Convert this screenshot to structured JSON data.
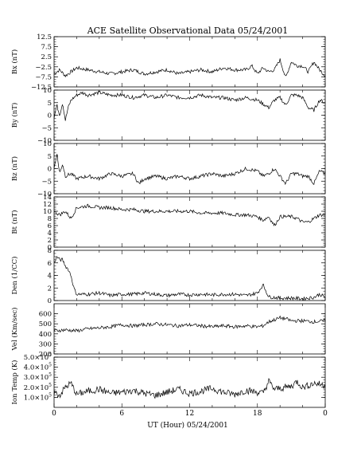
{
  "chart_data": {
    "type": "line",
    "title": "ACE Satellite Observational Data   05/24/2001",
    "xlabel": "UT (Hour)   05/24/2001",
    "x_ticks": [
      "0",
      "6",
      "12",
      "18",
      "0"
    ],
    "xlim": [
      0,
      24
    ],
    "panels": [
      {
        "name": "bx",
        "ylabel": "Bx (nT)",
        "ylim": [
          -12.5,
          12.5
        ],
        "y_ticks": [
          {
            "v": 12.5,
            "t": "12.5"
          },
          {
            "v": 7.5,
            "t": "7.5"
          },
          {
            "v": 2.5,
            "t": "2.5"
          },
          {
            "v": -2.5,
            "t": "−2.5"
          },
          {
            "v": -7.5,
            "t": "−7.5"
          },
          {
            "v": -12.5,
            "t": "−12.5"
          }
        ],
        "x": [
          0,
          0.5,
          1,
          1.5,
          2,
          3,
          4,
          5,
          6,
          7,
          8,
          9,
          10,
          11,
          12,
          13,
          14,
          15,
          16,
          17,
          17.5,
          18,
          18.5,
          19,
          19.5,
          20,
          20.5,
          21,
          21.5,
          22,
          22.5,
          23,
          23.5,
          24
        ],
        "y": [
          -6,
          -4,
          -7,
          -5,
          -3,
          -4,
          -5,
          -6,
          -5,
          -4,
          -6,
          -5,
          -4,
          -6,
          -5,
          -4,
          -5,
          -3,
          -4,
          -4,
          -2,
          -6,
          -3,
          -5,
          -4,
          1,
          -8,
          0,
          -2,
          -2,
          -5,
          0,
          -4,
          -7
        ]
      },
      {
        "name": "by",
        "ylabel": "By (nT)",
        "ylim": [
          -10,
          10
        ],
        "y_ticks": [
          {
            "v": 10,
            "t": "10"
          },
          {
            "v": 5,
            "t": "5"
          },
          {
            "v": 0,
            "t": "0"
          },
          {
            "v": -5,
            "t": "−5"
          },
          {
            "v": -10,
            "t": "−10"
          }
        ],
        "x": [
          0,
          0.25,
          0.5,
          0.75,
          1,
          1.25,
          1.5,
          2,
          2.5,
          3,
          4,
          5,
          6,
          7,
          8,
          9,
          10,
          11,
          12,
          13,
          14,
          15,
          16,
          17,
          18,
          19,
          19.5,
          20,
          20.5,
          21,
          21.5,
          22,
          22.5,
          23,
          23.5,
          24
        ],
        "y": [
          -1,
          4,
          0,
          5,
          -2,
          3,
          6,
          8,
          9,
          8,
          9,
          8,
          8,
          7,
          8,
          7,
          8,
          7,
          7,
          8,
          7,
          7,
          6,
          7,
          6,
          3,
          6,
          7,
          4,
          8,
          8,
          7,
          3,
          2,
          6,
          5
        ]
      },
      {
        "name": "bz",
        "ylabel": "Bz (nT)",
        "ylim": [
          -10,
          10
        ],
        "y_ticks": [
          {
            "v": 10,
            "t": "10"
          },
          {
            "v": 5,
            "t": "5"
          },
          {
            "v": 0,
            "t": "0"
          },
          {
            "v": -5,
            "t": "−5"
          },
          {
            "v": -10,
            "t": "−10"
          }
        ],
        "x": [
          0,
          0.25,
          0.5,
          0.75,
          1,
          1.5,
          2,
          3,
          4,
          5,
          6,
          7,
          7.5,
          8,
          9,
          10,
          11,
          12,
          13,
          14,
          15,
          16,
          17,
          18,
          18.5,
          19,
          19.5,
          20,
          20.5,
          21,
          21.5,
          22,
          22.5,
          23,
          23.5,
          24
        ],
        "y": [
          0,
          6,
          -2,
          2,
          -3,
          -2,
          -4,
          -3,
          -4,
          -2,
          -3,
          -2,
          -6,
          -4,
          -3,
          -4,
          -3,
          -4,
          -3,
          -2,
          -3,
          -2,
          0,
          -1,
          -3,
          -2,
          0,
          -3,
          -6,
          -2,
          -2,
          -3,
          -3,
          -6,
          -1,
          -2
        ]
      },
      {
        "name": "bt",
        "ylabel": "Bt (nT)",
        "ylim": [
          0,
          14
        ],
        "y_ticks": [
          {
            "v": 14,
            "t": "14"
          },
          {
            "v": 12,
            "t": "12"
          },
          {
            "v": 10,
            "t": "10"
          },
          {
            "v": 8,
            "t": "8"
          },
          {
            "v": 6,
            "t": "6"
          },
          {
            "v": 4,
            "t": "4"
          },
          {
            "v": 2,
            "t": "2"
          },
          {
            "v": 0,
            "t": "0"
          }
        ],
        "x": [
          0,
          0.5,
          1,
          1.5,
          2,
          3,
          4,
          5,
          6,
          7,
          8,
          9,
          10,
          11,
          12,
          13,
          14,
          15,
          16,
          17,
          18,
          18.5,
          19,
          19.5,
          20,
          20.5,
          21,
          21.5,
          22,
          22.5,
          23,
          23.5,
          24
        ],
        "y": [
          10,
          9,
          10,
          8,
          11,
          11.5,
          11,
          11,
          10.5,
          10.5,
          10,
          10,
          10,
          10,
          10,
          9.5,
          9.5,
          9.5,
          9,
          9,
          8.5,
          7.5,
          8.5,
          6,
          8.5,
          8.5,
          8.5,
          8,
          7,
          7,
          8,
          9,
          9
        ]
      },
      {
        "name": "den",
        "ylabel": "Den (1/CC)",
        "ylim": [
          0,
          8
        ],
        "y_ticks": [
          {
            "v": 8,
            "t": "8"
          },
          {
            "v": 6,
            "t": "6"
          },
          {
            "v": 4,
            "t": "4"
          },
          {
            "v": 2,
            "t": "2"
          },
          {
            "v": 0,
            "t": "0"
          }
        ],
        "x": [
          0,
          0.25,
          0.5,
          0.75,
          1,
          1.25,
          1.5,
          1.75,
          2,
          3,
          4,
          5,
          6,
          7,
          8,
          9,
          10,
          11,
          12,
          13,
          14,
          15,
          16,
          17,
          18,
          18.5,
          19,
          19.5,
          20,
          20.5,
          21,
          22,
          23,
          23.5,
          24
        ],
        "y": [
          6,
          7,
          6.5,
          6.5,
          5.5,
          5,
          4,
          2,
          1,
          1,
          1.2,
          0.8,
          1,
          1,
          1.2,
          1,
          0.8,
          1,
          0.9,
          1,
          0.9,
          1,
          1,
          0.8,
          1.2,
          2.5,
          0.6,
          0.5,
          0.4,
          0.4,
          0.4,
          0.3,
          0.5,
          1,
          0.5
        ]
      },
      {
        "name": "vel",
        "ylabel": "Vel (Km/sec)",
        "ylim": [
          200,
          700
        ],
        "y_ticks": [
          {
            "v": 600,
            "t": "600"
          },
          {
            "v": 500,
            "t": "500"
          },
          {
            "v": 400,
            "t": "400"
          },
          {
            "v": 300,
            "t": "300"
          },
          {
            "v": 200,
            "t": "200"
          }
        ],
        "x": [
          0,
          1,
          2,
          3,
          4,
          5,
          6,
          7,
          8,
          9,
          10,
          11,
          12,
          13,
          14,
          15,
          16,
          17,
          18,
          18.5,
          19,
          19.5,
          20,
          20.5,
          21,
          22,
          23,
          24
        ],
        "y": [
          430,
          440,
          430,
          450,
          460,
          470,
          490,
          480,
          490,
          500,
          490,
          480,
          490,
          480,
          470,
          480,
          470,
          480,
          470,
          480,
          520,
          540,
          560,
          550,
          530,
          530,
          520,
          530
        ]
      },
      {
        "name": "temp",
        "ylabel": "Ion Temp (K)",
        "ylim": [
          0,
          500000
        ],
        "y_ticks": [
          {
            "v": 500000,
            "t": "5.0×10",
            "e": "5"
          },
          {
            "v": 400000,
            "t": "4.0×10",
            "e": "5"
          },
          {
            "v": 300000,
            "t": "3.0×10",
            "e": "5"
          },
          {
            "v": 200000,
            "t": "2.0×10",
            "e": "5"
          },
          {
            "v": 100000,
            "t": "1.0×10",
            "e": "5"
          }
        ],
        "x": [
          0,
          0.5,
          1,
          1.5,
          2,
          3,
          4,
          5,
          6,
          7,
          8,
          9,
          10,
          11,
          12,
          13,
          14,
          15,
          16,
          17,
          18,
          18.5,
          19,
          19.5,
          20,
          21,
          21.5,
          22,
          23,
          24
        ],
        "y": [
          150000,
          120000,
          200000,
          240000,
          130000,
          160000,
          180000,
          140000,
          150000,
          170000,
          140000,
          120000,
          150000,
          180000,
          140000,
          160000,
          190000,
          150000,
          130000,
          170000,
          150000,
          140000,
          260000,
          180000,
          190000,
          210000,
          260000,
          200000,
          240000,
          220000
        ]
      }
    ]
  }
}
